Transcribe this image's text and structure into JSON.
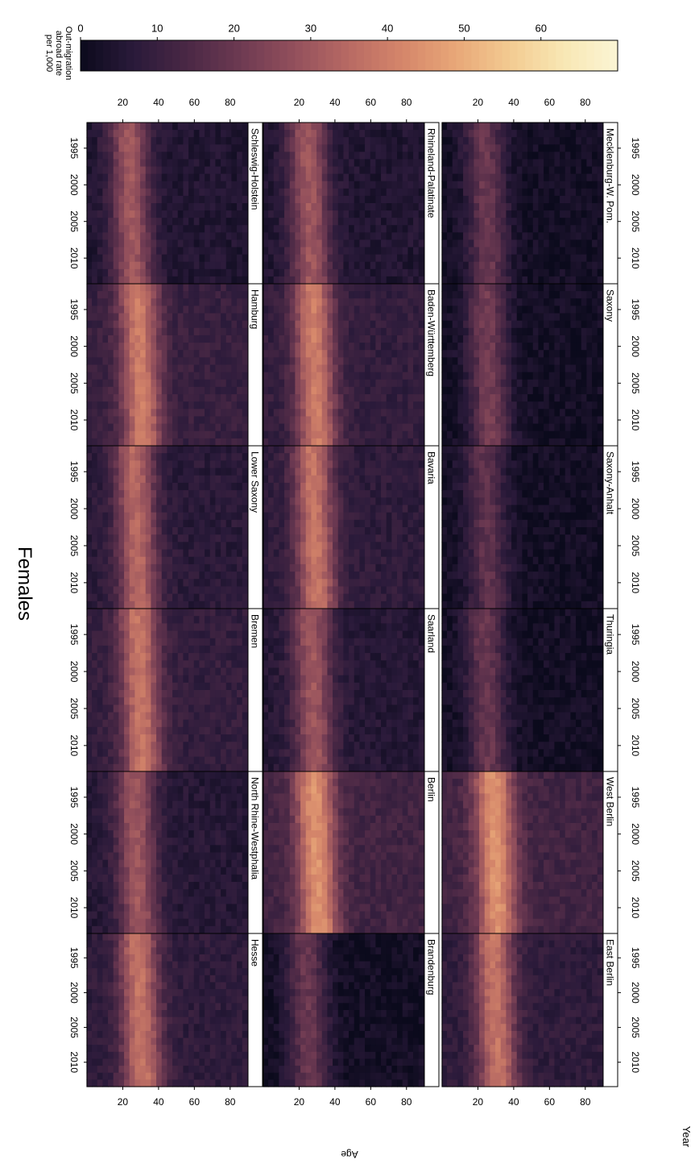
{
  "colors": {
    "ramp": [
      "#0b0a1c",
      "#2a1a3a",
      "#4a2845",
      "#6e3a52",
      "#93505c",
      "#b86a63",
      "#d5866a",
      "#e8a778",
      "#f3cb91",
      "#f8e7b4",
      "#fbf5d4"
    ],
    "panel_border": "#000000",
    "strip_bg": "#ffffff"
  },
  "chart_data": {
    "type": "heatmap",
    "title": "Females",
    "xlabel": "Year",
    "ylabel": "Age",
    "year_ticks": [
      "1995",
      "2000",
      "2005",
      "2010"
    ],
    "age_ticks": [
      "20",
      "40",
      "60",
      "80"
    ],
    "year_range": [
      1992,
      2013
    ],
    "age_range": [
      0,
      90
    ],
    "colorbar": {
      "title_lines": [
        "Out-migration",
        "abroad rate",
        "per 1,000"
      ],
      "ticks": [
        "0",
        "10",
        "20",
        "30",
        "40",
        "50",
        "60"
      ],
      "range": [
        0,
        70
      ]
    },
    "panels": [
      {
        "name": "Schleswig-Holstein",
        "peak_age": 22,
        "peak_rate": 30,
        "base_rate": 5
      },
      {
        "name": "Hamburg",
        "peak_age": 27,
        "peak_rate": 40,
        "base_rate": 10
      },
      {
        "name": "Lower Saxony",
        "peak_age": 25,
        "peak_rate": 35,
        "base_rate": 7
      },
      {
        "name": "Bremen",
        "peak_age": 27,
        "peak_rate": 38,
        "base_rate": 9
      },
      {
        "name": "North Rhine-Westphalia",
        "peak_age": 25,
        "peak_rate": 30,
        "base_rate": 6
      },
      {
        "name": "Hesse",
        "peak_age": 27,
        "peak_rate": 38,
        "base_rate": 8
      },
      {
        "name": "Rhineland-Palatinate",
        "peak_age": 23,
        "peak_rate": 30,
        "base_rate": 5
      },
      {
        "name": "Baden-Württemberg",
        "peak_age": 26,
        "peak_rate": 40,
        "base_rate": 9
      },
      {
        "name": "Bavaria",
        "peak_age": 26,
        "peak_rate": 38,
        "base_rate": 8
      },
      {
        "name": "Saarland",
        "peak_age": 25,
        "peak_rate": 30,
        "base_rate": 6
      },
      {
        "name": "Berlin",
        "peak_age": 27,
        "peak_rate": 45,
        "base_rate": 12
      },
      {
        "name": "Brandenburg",
        "peak_age": 22,
        "peak_rate": 20,
        "base_rate": 2
      },
      {
        "name": "Mecklenburg-W. Pom.",
        "peak_age": 22,
        "peak_rate": 20,
        "base_rate": 2
      },
      {
        "name": "Saxony",
        "peak_age": 23,
        "peak_rate": 22,
        "base_rate": 2
      },
      {
        "name": "Saxony-Anhalt",
        "peak_age": 22,
        "peak_rate": 18,
        "base_rate": 2
      },
      {
        "name": "Thuringia",
        "peak_age": 22,
        "peak_rate": 20,
        "base_rate": 2
      },
      {
        "name": "West Berlin",
        "peak_age": 27,
        "peak_rate": 45,
        "base_rate": 12
      },
      {
        "name": "East Berlin",
        "peak_age": 27,
        "peak_rate": 38,
        "base_rate": 8
      }
    ]
  }
}
